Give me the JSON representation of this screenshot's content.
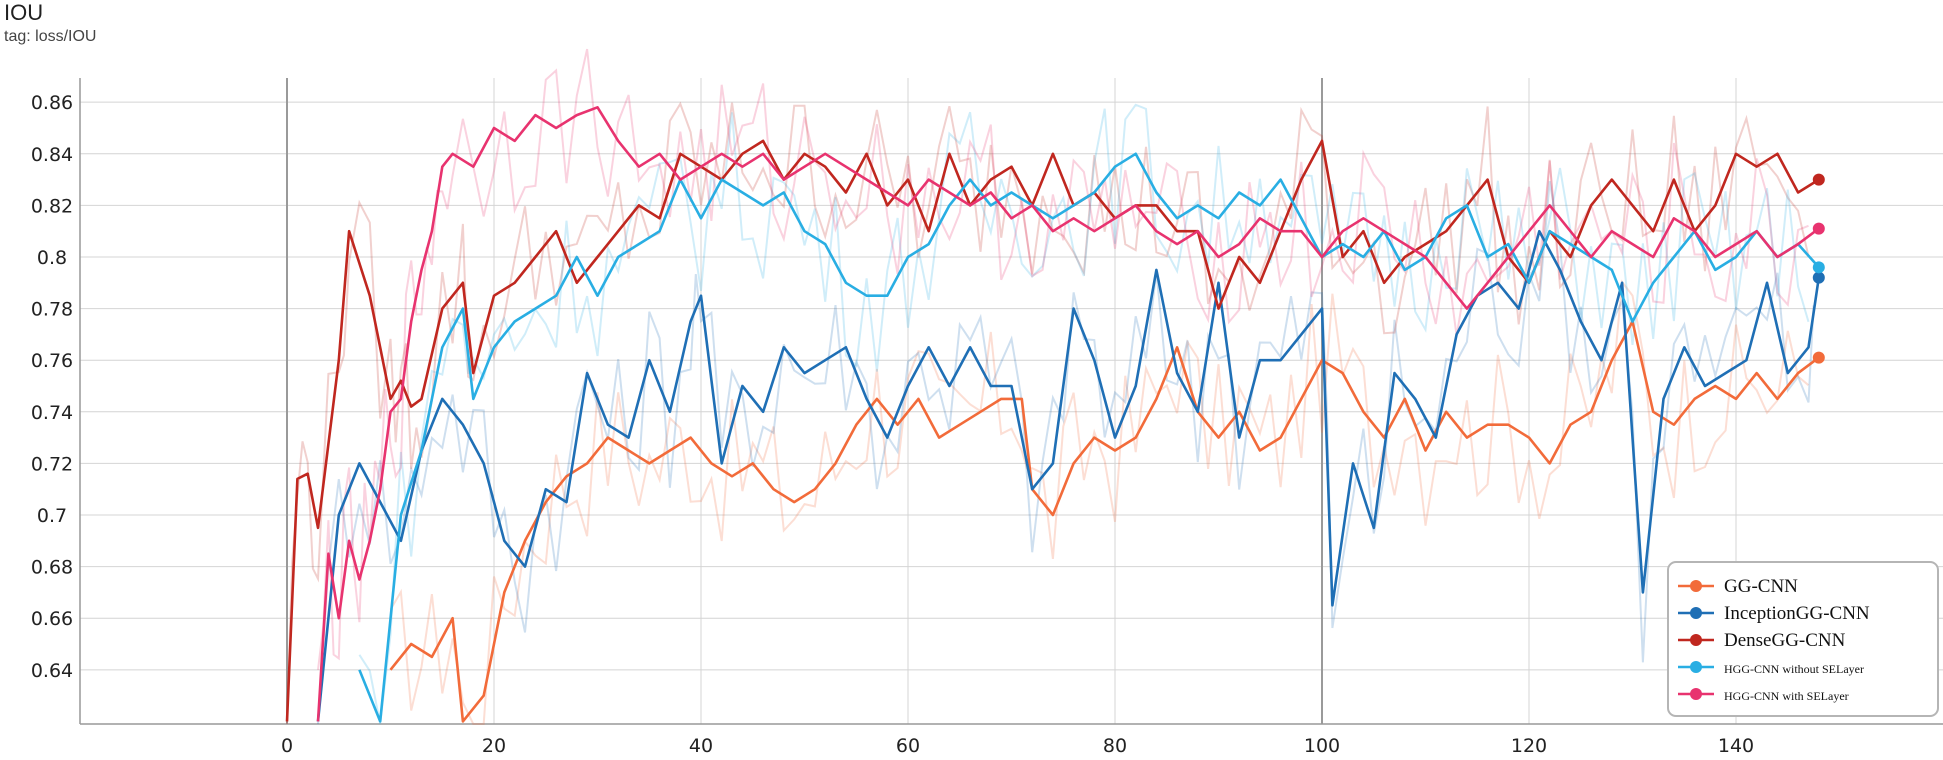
{
  "header": {
    "title": "IOU",
    "tag": "tag: loss/IOU"
  },
  "chart_data": {
    "type": "line",
    "title": "IOU",
    "subtitle": "tag: loss/IOU",
    "xlabel": "",
    "ylabel": "",
    "xlim": [
      -20,
      160
    ],
    "ylim": [
      0.619,
      0.881
    ],
    "x_ticks": [
      0,
      20,
      40,
      60,
      80,
      100,
      120,
      140
    ],
    "y_ticks": [
      0.64,
      0.66,
      0.68,
      0.7,
      0.72,
      0.74,
      0.76,
      0.78,
      0.8,
      0.82,
      0.84,
      0.86
    ],
    "y_tick_labels": [
      "0.64",
      "0.66",
      "0.68",
      "0.7",
      "0.72",
      "0.74",
      "0.76",
      "0.78",
      "0.8",
      "0.82",
      "0.84",
      "0.86"
    ],
    "grid": true,
    "legend_position": "bottom-right",
    "smoothing_raw_traces": true,
    "series": [
      {
        "name": "GG-CNN",
        "color": "#f26b3a",
        "x": [
          10,
          12,
          14,
          16,
          17,
          19,
          21,
          23,
          25,
          27,
          29,
          31,
          33,
          35,
          37,
          39,
          41,
          43,
          45,
          47,
          49,
          51,
          53,
          55,
          57,
          59,
          61,
          63,
          65,
          67,
          69,
          71,
          72,
          74,
          76,
          78,
          80,
          82,
          84,
          86,
          88,
          90,
          92,
          94,
          96,
          98,
          100,
          102,
          104,
          106,
          108,
          110,
          112,
          114,
          116,
          118,
          120,
          122,
          124,
          126,
          128,
          130,
          132,
          134,
          136,
          138,
          140,
          142,
          144,
          146,
          148
        ],
        "y": [
          0.64,
          0.65,
          0.645,
          0.66,
          0.62,
          0.63,
          0.67,
          0.69,
          0.705,
          0.715,
          0.72,
          0.73,
          0.725,
          0.72,
          0.725,
          0.73,
          0.72,
          0.715,
          0.72,
          0.71,
          0.705,
          0.71,
          0.72,
          0.735,
          0.745,
          0.735,
          0.745,
          0.73,
          0.735,
          0.74,
          0.745,
          0.745,
          0.71,
          0.7,
          0.72,
          0.73,
          0.725,
          0.73,
          0.745,
          0.765,
          0.74,
          0.73,
          0.74,
          0.725,
          0.73,
          0.745,
          0.76,
          0.755,
          0.74,
          0.73,
          0.745,
          0.725,
          0.74,
          0.73,
          0.735,
          0.735,
          0.73,
          0.72,
          0.735,
          0.74,
          0.76,
          0.775,
          0.74,
          0.735,
          0.745,
          0.75,
          0.745,
          0.755,
          0.745,
          0.755,
          0.761
        ]
      },
      {
        "name": "InceptionGG-CNN",
        "color": "#1f6fb5",
        "x": [
          3,
          5,
          7,
          9,
          11,
          13,
          15,
          17,
          19,
          21,
          23,
          25,
          27,
          29,
          31,
          33,
          35,
          37,
          39,
          40,
          42,
          44,
          46,
          48,
          50,
          52,
          54,
          56,
          58,
          60,
          62,
          64,
          66,
          68,
          70,
          72,
          74,
          76,
          78,
          80,
          82,
          84,
          86,
          88,
          90,
          92,
          94,
          96,
          98,
          100,
          101,
          103,
          105,
          107,
          109,
          111,
          113,
          115,
          117,
          119,
          121,
          123,
          125,
          127,
          129,
          131,
          133,
          135,
          137,
          139,
          141,
          143,
          145,
          147,
          148
        ],
        "y": [
          0.62,
          0.7,
          0.72,
          0.705,
          0.69,
          0.725,
          0.745,
          0.735,
          0.72,
          0.69,
          0.68,
          0.71,
          0.705,
          0.755,
          0.735,
          0.73,
          0.76,
          0.74,
          0.775,
          0.785,
          0.72,
          0.75,
          0.74,
          0.765,
          0.755,
          0.76,
          0.765,
          0.745,
          0.73,
          0.75,
          0.765,
          0.75,
          0.765,
          0.75,
          0.75,
          0.71,
          0.72,
          0.78,
          0.76,
          0.73,
          0.75,
          0.795,
          0.755,
          0.74,
          0.79,
          0.73,
          0.76,
          0.76,
          0.77,
          0.78,
          0.665,
          0.72,
          0.695,
          0.755,
          0.745,
          0.73,
          0.77,
          0.785,
          0.79,
          0.78,
          0.81,
          0.795,
          0.775,
          0.76,
          0.79,
          0.67,
          0.745,
          0.765,
          0.75,
          0.755,
          0.76,
          0.79,
          0.755,
          0.765,
          0.792
        ]
      },
      {
        "name": "DenseGG-CNN",
        "color": "#c0271f",
        "x": [
          0,
          1,
          2,
          3,
          5,
          6,
          8,
          10,
          11,
          12,
          13,
          15,
          17,
          18,
          20,
          22,
          24,
          26,
          28,
          30,
          32,
          34,
          36,
          38,
          40,
          42,
          44,
          46,
          48,
          50,
          52,
          54,
          56,
          58,
          60,
          62,
          64,
          66,
          68,
          70,
          72,
          74,
          76,
          78,
          80,
          82,
          84,
          86,
          88,
          90,
          92,
          94,
          96,
          98,
          100,
          102,
          104,
          106,
          108,
          110,
          112,
          114,
          116,
          118,
          120,
          122,
          124,
          126,
          128,
          130,
          132,
          134,
          136,
          138,
          140,
          142,
          144,
          146,
          148
        ],
        "y": [
          0.62,
          0.714,
          0.716,
          0.695,
          0.76,
          0.81,
          0.785,
          0.745,
          0.752,
          0.742,
          0.745,
          0.78,
          0.79,
          0.755,
          0.785,
          0.79,
          0.8,
          0.81,
          0.79,
          0.8,
          0.81,
          0.82,
          0.815,
          0.84,
          0.835,
          0.83,
          0.84,
          0.845,
          0.83,
          0.84,
          0.835,
          0.825,
          0.84,
          0.82,
          0.83,
          0.81,
          0.84,
          0.82,
          0.83,
          0.835,
          0.82,
          0.84,
          0.82,
          0.825,
          0.815,
          0.82,
          0.82,
          0.81,
          0.81,
          0.78,
          0.8,
          0.79,
          0.81,
          0.83,
          0.845,
          0.8,
          0.81,
          0.79,
          0.8,
          0.805,
          0.81,
          0.82,
          0.83,
          0.8,
          0.79,
          0.81,
          0.8,
          0.82,
          0.83,
          0.82,
          0.81,
          0.83,
          0.81,
          0.82,
          0.84,
          0.835,
          0.84,
          0.825,
          0.83
        ]
      },
      {
        "name": "HGG-CNN without SELayer",
        "color": "#29aee3",
        "x": [
          7,
          9,
          11,
          13,
          15,
          17,
          18,
          20,
          22,
          24,
          26,
          28,
          30,
          32,
          34,
          36,
          38,
          40,
          42,
          44,
          46,
          48,
          50,
          52,
          54,
          56,
          58,
          60,
          62,
          64,
          66,
          68,
          70,
          72,
          74,
          76,
          78,
          80,
          82,
          84,
          86,
          88,
          90,
          92,
          94,
          96,
          98,
          100,
          102,
          104,
          106,
          108,
          110,
          112,
          114,
          116,
          118,
          120,
          122,
          124,
          126,
          128,
          130,
          132,
          134,
          136,
          138,
          140,
          142,
          144,
          146,
          148
        ],
        "y": [
          0.64,
          0.62,
          0.7,
          0.725,
          0.765,
          0.78,
          0.745,
          0.765,
          0.775,
          0.78,
          0.785,
          0.8,
          0.785,
          0.8,
          0.805,
          0.81,
          0.83,
          0.815,
          0.83,
          0.825,
          0.82,
          0.825,
          0.81,
          0.805,
          0.79,
          0.785,
          0.785,
          0.8,
          0.805,
          0.82,
          0.83,
          0.82,
          0.825,
          0.82,
          0.815,
          0.82,
          0.825,
          0.835,
          0.84,
          0.825,
          0.815,
          0.82,
          0.815,
          0.825,
          0.82,
          0.83,
          0.815,
          0.8,
          0.805,
          0.8,
          0.81,
          0.795,
          0.8,
          0.815,
          0.82,
          0.8,
          0.805,
          0.79,
          0.81,
          0.805,
          0.8,
          0.795,
          0.775,
          0.79,
          0.8,
          0.81,
          0.795,
          0.8,
          0.81,
          0.8,
          0.805,
          0.796
        ]
      },
      {
        "name": "HGG-CNN with SELayer",
        "color": "#e8336f",
        "x": [
          3,
          4,
          5,
          6,
          7,
          8,
          9,
          10,
          11,
          12,
          13,
          14,
          15,
          16,
          18,
          20,
          22,
          24,
          26,
          28,
          30,
          32,
          34,
          36,
          38,
          40,
          42,
          44,
          46,
          48,
          50,
          52,
          54,
          56,
          58,
          60,
          62,
          64,
          66,
          68,
          70,
          72,
          74,
          76,
          78,
          80,
          82,
          84,
          86,
          88,
          90,
          92,
          94,
          96,
          98,
          100,
          102,
          104,
          106,
          108,
          110,
          112,
          114,
          116,
          118,
          120,
          122,
          124,
          126,
          128,
          130,
          132,
          134,
          136,
          138,
          140,
          142,
          144,
          146,
          148
        ],
        "y": [
          0.62,
          0.685,
          0.66,
          0.69,
          0.675,
          0.69,
          0.71,
          0.74,
          0.745,
          0.775,
          0.795,
          0.81,
          0.835,
          0.84,
          0.835,
          0.85,
          0.845,
          0.855,
          0.85,
          0.855,
          0.858,
          0.845,
          0.835,
          0.84,
          0.83,
          0.835,
          0.84,
          0.835,
          0.84,
          0.83,
          0.835,
          0.84,
          0.835,
          0.83,
          0.825,
          0.82,
          0.83,
          0.825,
          0.82,
          0.825,
          0.815,
          0.82,
          0.81,
          0.815,
          0.81,
          0.815,
          0.82,
          0.81,
          0.805,
          0.81,
          0.8,
          0.805,
          0.815,
          0.81,
          0.81,
          0.8,
          0.81,
          0.815,
          0.81,
          0.805,
          0.8,
          0.79,
          0.78,
          0.79,
          0.8,
          0.81,
          0.82,
          0.81,
          0.8,
          0.81,
          0.805,
          0.8,
          0.815,
          0.81,
          0.8,
          0.805,
          0.81,
          0.8,
          0.805,
          0.811
        ]
      }
    ]
  }
}
